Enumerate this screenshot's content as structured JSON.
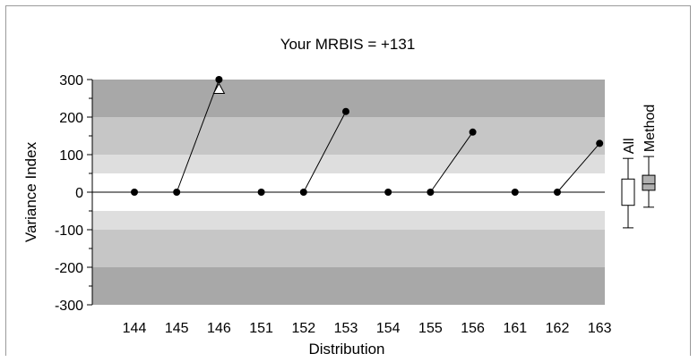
{
  "chart_data": {
    "type": "scatter",
    "title": "Your MRBIS = +131",
    "xlabel": "Distribution",
    "ylabel": "Variance Index",
    "ylim": [
      -300,
      300
    ],
    "yticks": [
      "300",
      "200",
      "100",
      "0",
      "-100",
      "-200",
      "-300"
    ],
    "categories": [
      "144",
      "145",
      "146",
      "151",
      "152",
      "153",
      "154",
      "155",
      "156",
      "161",
      "162",
      "163"
    ],
    "values": [
      0,
      0,
      300,
      0,
      0,
      215,
      0,
      0,
      160,
      0,
      0,
      130
    ],
    "connections": [
      [
        1,
        2
      ],
      [
        4,
        5
      ],
      [
        7,
        8
      ],
      [
        10,
        11
      ]
    ],
    "clipped_marker": {
      "category": "146",
      "value": 275,
      "marker": "open-triangle"
    },
    "bands": [
      {
        "from": 200,
        "to": 300,
        "color": "#a8a8a8"
      },
      {
        "from": 100,
        "to": 200,
        "color": "#c6c6c6"
      },
      {
        "from": 50,
        "to": 100,
        "color": "#dedede"
      },
      {
        "from": -50,
        "to": 50,
        "color": "#ffffff"
      },
      {
        "from": -100,
        "to": -50,
        "color": "#dedede"
      },
      {
        "from": -200,
        "to": -100,
        "color": "#c6c6c6"
      },
      {
        "from": -300,
        "to": -200,
        "color": "#a8a8a8"
      }
    ],
    "boxplots": [
      {
        "label": "All",
        "whisker_low": -95,
        "q1": -35,
        "q3": 35,
        "whisker_high": 90,
        "fill": "#ffffff"
      },
      {
        "label": "Method",
        "whisker_low": -40,
        "q1": 5,
        "q3": 45,
        "whisker_high": 95,
        "median": 22,
        "fill": "#b0b0b0"
      }
    ],
    "grid": false,
    "colors": {
      "marker": "#000000",
      "line": "#000000"
    }
  }
}
